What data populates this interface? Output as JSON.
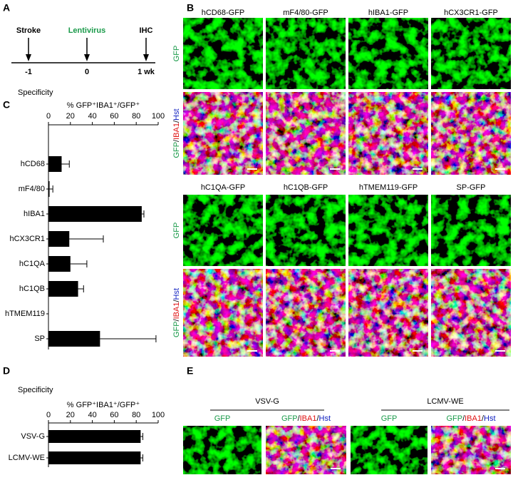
{
  "panels": {
    "A": {
      "letter": "A",
      "events": [
        {
          "label": "Stroke",
          "time": "-1"
        },
        {
          "label": "Lentivirus",
          "time": "0"
        },
        {
          "label": "IHC",
          "time": "1 wk"
        }
      ]
    },
    "B": {
      "letter": "B",
      "blocks": [
        {
          "columns": [
            "hCD68-GFP",
            "mF4/80-GFP",
            "hIBA1-GFP",
            "hCX3CR1-GFP"
          ],
          "row_label": "GFP",
          "merge_label": [
            "GFP",
            "/",
            "IBA1",
            "/",
            "Hst"
          ]
        },
        {
          "columns": [
            "hC1QA-GFP",
            "hC1QB-GFP",
            "hTMEM119-GFP",
            "SP-GFP"
          ],
          "row_label": "GFP",
          "merge_label": [
            "GFP",
            "/",
            "IBA1",
            "/",
            "Hst"
          ]
        }
      ]
    },
    "C": {
      "letter": "C"
    },
    "D": {
      "letter": "D"
    },
    "E": {
      "letter": "E",
      "groups": [
        {
          "name": "VSV-G",
          "gfp_label": "GFP",
          "merge_label": [
            "GFP",
            "/",
            "IBA1",
            "/",
            "Hst"
          ]
        },
        {
          "name": "LCMV-WE",
          "gfp_label": "GFP",
          "merge_label": [
            "GFP",
            "/",
            "IBA1",
            "/",
            "Hst"
          ]
        }
      ]
    },
    "lentivirus_color": "#1a9a4a",
    "merge_colors": [
      "#1a9a4a",
      "#000000",
      "#e01010",
      "#000000",
      "#1020c0"
    ]
  },
  "chart_data": [
    {
      "type": "bar",
      "horizontal": true,
      "title": "Specificity",
      "xlabel": "% GFP⁺IBA1⁺/GFP⁺",
      "categories": [
        "hCD68",
        "mF4/80",
        "hIBA1",
        "hCX3CR1",
        "hC1QA",
        "hC1QB",
        "hTMEM119",
        "SP"
      ],
      "values": [
        12,
        1,
        85,
        19,
        20,
        27,
        0,
        47
      ],
      "errors": [
        7,
        3,
        2,
        31,
        15,
        5,
        0,
        51
      ],
      "color": "#000000",
      "xlim": [
        0,
        100
      ],
      "xticks": [
        0,
        20,
        40,
        60,
        80,
        100
      ]
    },
    {
      "type": "bar",
      "horizontal": true,
      "title": "Specificity",
      "xlabel": "% GFP⁺IBA1⁺/GFP⁺",
      "categories": [
        "VSV-G",
        "LCMV-WE"
      ],
      "values": [
        84,
        84
      ],
      "errors": [
        2,
        2
      ],
      "color": "#000000",
      "xlim": [
        0,
        100
      ],
      "xticks": [
        0,
        20,
        40,
        60,
        80,
        100
      ]
    }
  ]
}
